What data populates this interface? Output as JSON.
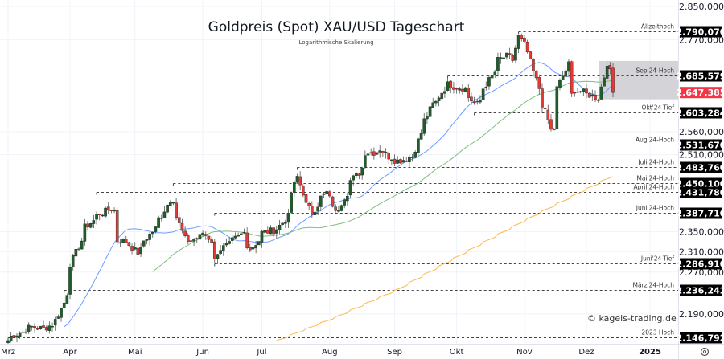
{
  "chart_data": {
    "type": "candlestick",
    "title": "Goldpreis (Spot) XAU/USD Tageschart",
    "subtitle": "Logarithmische Skalierung",
    "y_scale": "log",
    "ylim": [
      2130,
      2870
    ],
    "y_ticks": [
      "2.850,000",
      "2.770,000",
      "2.560,000",
      "2.510,000",
      "2.350,000",
      "2.310,000",
      "2.270,000",
      "2.190,000"
    ],
    "y_tick_values": [
      2850,
      2770,
      2560,
      2510,
      2350,
      2310,
      2270,
      2190
    ],
    "x_ticks": [
      "Mrz",
      "Apr",
      "Mai",
      "Jun",
      "Jul",
      "Aug",
      "Sep",
      "Okt",
      "Nov",
      "Dez",
      "2025"
    ],
    "x_range": [
      "2024-03-01",
      "2024-12-13"
    ],
    "grid": true,
    "colors": {
      "up": "#1e5e2a",
      "down": "#e53935",
      "ma_fast": "#6f9cff",
      "ma_slow": "#7cbf7c",
      "ma_long": "#ffb74d",
      "current": "#f23645",
      "box": "#c9c9ce"
    },
    "close_waypoints": [
      [
        "2024-03-01",
        2141
      ],
      [
        "2024-03-05",
        2151
      ],
      [
        "2024-03-13",
        2166
      ],
      [
        "2024-03-19",
        2163
      ],
      [
        "2024-03-25",
        2178
      ],
      [
        "2024-03-28",
        2211
      ],
      [
        "2024-04-01",
        2285
      ],
      [
        "2024-04-05",
        2332
      ],
      [
        "2024-04-08",
        2359
      ],
      [
        "2024-04-11",
        2372
      ],
      [
        "2024-04-12",
        2383
      ],
      [
        "2024-04-16",
        2388
      ],
      [
        "2024-04-19",
        2397
      ],
      [
        "2024-04-22",
        2393
      ],
      [
        "2024-04-23",
        2332
      ],
      [
        "2024-04-25",
        2332
      ],
      [
        "2024-04-29",
        2324
      ],
      [
        "2024-05-02",
        2308
      ],
      [
        "2024-05-06",
        2332
      ],
      [
        "2024-05-10",
        2356
      ],
      [
        "2024-05-14",
        2383
      ],
      [
        "2024-05-17",
        2416
      ],
      [
        "2024-05-20",
        2416
      ],
      [
        "2024-05-21",
        2380
      ],
      [
        "2024-05-24",
        2335
      ],
      [
        "2024-05-28",
        2332
      ],
      [
        "2024-06-03",
        2348
      ],
      [
        "2024-06-06",
        2332
      ],
      [
        "2024-06-07",
        2292
      ],
      [
        "2024-06-11",
        2316
      ],
      [
        "2024-06-17",
        2332
      ],
      [
        "2024-06-21",
        2348
      ],
      [
        "2024-06-25",
        2316
      ],
      [
        "2024-06-28",
        2332
      ],
      [
        "2024-07-01",
        2348
      ],
      [
        "2024-07-08",
        2356
      ],
      [
        "2024-07-12",
        2380
      ],
      [
        "2024-07-15",
        2430
      ],
      [
        "2024-07-17",
        2463
      ],
      [
        "2024-07-19",
        2430
      ],
      [
        "2024-07-24",
        2388
      ],
      [
        "2024-07-26",
        2405
      ],
      [
        "2024-07-31",
        2430
      ],
      [
        "2024-08-02",
        2405
      ],
      [
        "2024-08-05",
        2388
      ],
      [
        "2024-08-08",
        2421
      ],
      [
        "2024-08-12",
        2455
      ],
      [
        "2024-08-15",
        2471
      ],
      [
        "2024-08-19",
        2515
      ],
      [
        "2024-08-22",
        2515
      ],
      [
        "2024-08-26",
        2523
      ],
      [
        "2024-08-29",
        2506
      ],
      [
        "2024-09-03",
        2497
      ],
      [
        "2024-09-06",
        2501
      ],
      [
        "2024-09-10",
        2506
      ],
      [
        "2024-09-13",
        2558
      ],
      [
        "2024-09-16",
        2585
      ],
      [
        "2024-09-19",
        2621
      ],
      [
        "2024-09-23",
        2639
      ],
      [
        "2024-09-26",
        2666
      ],
      [
        "2024-10-01",
        2660
      ],
      [
        "2024-10-04",
        2657
      ],
      [
        "2024-10-08",
        2630
      ],
      [
        "2024-10-10",
        2621
      ],
      [
        "2024-10-14",
        2657
      ],
      [
        "2024-10-18",
        2694
      ],
      [
        "2024-10-21",
        2722
      ],
      [
        "2024-10-24",
        2731
      ],
      [
        "2024-10-28",
        2722
      ],
      [
        "2024-10-30",
        2778
      ],
      [
        "2024-11-01",
        2759
      ],
      [
        "2024-11-04",
        2740
      ],
      [
        "2024-11-06",
        2694
      ],
      [
        "2024-11-08",
        2657
      ],
      [
        "2024-11-11",
        2621
      ],
      [
        "2024-11-13",
        2585
      ],
      [
        "2024-11-14",
        2563
      ],
      [
        "2024-11-15",
        2567
      ],
      [
        "2024-11-18",
        2657
      ],
      [
        "2024-11-22",
        2712
      ],
      [
        "2024-11-25",
        2642
      ],
      [
        "2024-11-26",
        2653
      ],
      [
        "2024-11-29",
        2648
      ],
      [
        "2024-12-03",
        2642
      ],
      [
        "2024-12-06",
        2635
      ],
      [
        "2024-12-09",
        2660
      ],
      [
        "2024-12-10",
        2684
      ],
      [
        "2024-12-11",
        2716
      ],
      [
        "2024-12-12",
        2694
      ],
      [
        "2024-12-13",
        2647
      ]
    ],
    "moving_averages": [
      {
        "period": 20,
        "color_key": "ma_fast"
      },
      {
        "period": 50,
        "color_key": "ma_slow"
      }
    ],
    "long_ma_points": [
      [
        "2024-07-08",
        2141
      ],
      [
        "2024-08-05",
        2185
      ],
      [
        "2024-09-03",
        2237
      ],
      [
        "2024-10-01",
        2300
      ],
      [
        "2024-11-04",
        2377
      ],
      [
        "2024-12-13",
        2463
      ]
    ],
    "levels": [
      {
        "label": "Allzeithoch",
        "value": 2790.07,
        "value_text": "2.790,070",
        "from": "2024-10-30"
      },
      {
        "label": "Sep'24-Hoch",
        "value": 2685.579,
        "value_text": "2.685,579",
        "from": "2024-09-26"
      },
      {
        "label": "Okt'24-Tief",
        "value": 2603.284,
        "value_text": "2.603,284",
        "from": "2024-10-09"
      },
      {
        "label": "Aug'24-Hoch",
        "value": 2531.67,
        "value_text": "2.531,670",
        "from": "2024-08-20"
      },
      {
        "label": "Juli'24-Hoch",
        "value": 2483.76,
        "value_text": "2.483,760",
        "from": "2024-07-17"
      },
      {
        "label": "Mai'24-Hoch",
        "value": 2450.1,
        "value_text": "2.450,100",
        "from": "2024-05-20"
      },
      {
        "label": "April'24-Hoch",
        "value": 2431.78,
        "value_text": "2.431,780",
        "from": "2024-04-12"
      },
      {
        "label": "Juni'24-Hoch",
        "value": 2387.71,
        "value_text": "2.387,710",
        "from": "2024-06-07"
      },
      {
        "label": "Juni'24-Tief",
        "value": 2286.91,
        "value_text": "2.286,910",
        "from": "2024-06-07"
      },
      {
        "label": "März'24-Hoch",
        "value": 2236.242,
        "value_text": "2.236,242",
        "from": "2024-03-28"
      },
      {
        "label": "2023 Hoch",
        "value": 2146.792,
        "value_text": "2.146,792",
        "from": "2024-03-01"
      }
    ],
    "current_price": {
      "value": 2647.385,
      "value_text": "2.647,385"
    },
    "range_box": {
      "from": "2024-12-09",
      "high": 2720,
      "low": 2632
    }
  },
  "watermark": "© kagels-trading.de",
  "settings_icon": "gear-icon"
}
